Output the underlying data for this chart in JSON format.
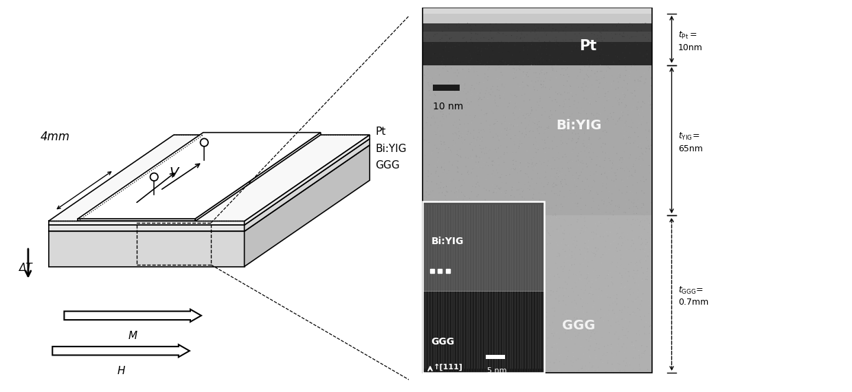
{
  "fig_width": 12.4,
  "fig_height": 5.7,
  "bg_color": "#ffffff",
  "left_panel": {
    "label_4mm": "4mm",
    "label_V": "V",
    "label_Pt": "Pt",
    "label_BiYIG": "Bi:YIG",
    "label_GGG": "GGG",
    "label_deltaT": "ΔT",
    "label_M": "M",
    "label_H": "H"
  },
  "right_panel": {
    "pt_label": "Pt",
    "biyig_label": "Bi:YIG",
    "ggg_label": "GGG",
    "scalebar1_label": "10 nm",
    "scalebar2_label": "5 nm",
    "tPt_label1": "$t_{\\mathrm{Pt}}=$",
    "tPt_label2": "10nm",
    "tYIG_label1": "$t_{\\mathrm{YIG}}\\!=\\!$",
    "tYIG_label2": "65nm",
    "tGGG_label1": "$t_{\\mathrm{GGG}}\\!=\\!$",
    "tGGG_label2": "0.7mm",
    "inset_label_BiYIG": "Bi:YIG",
    "inset_label_GGG": "GGG",
    "inset_label_dir": "↑[111]"
  }
}
